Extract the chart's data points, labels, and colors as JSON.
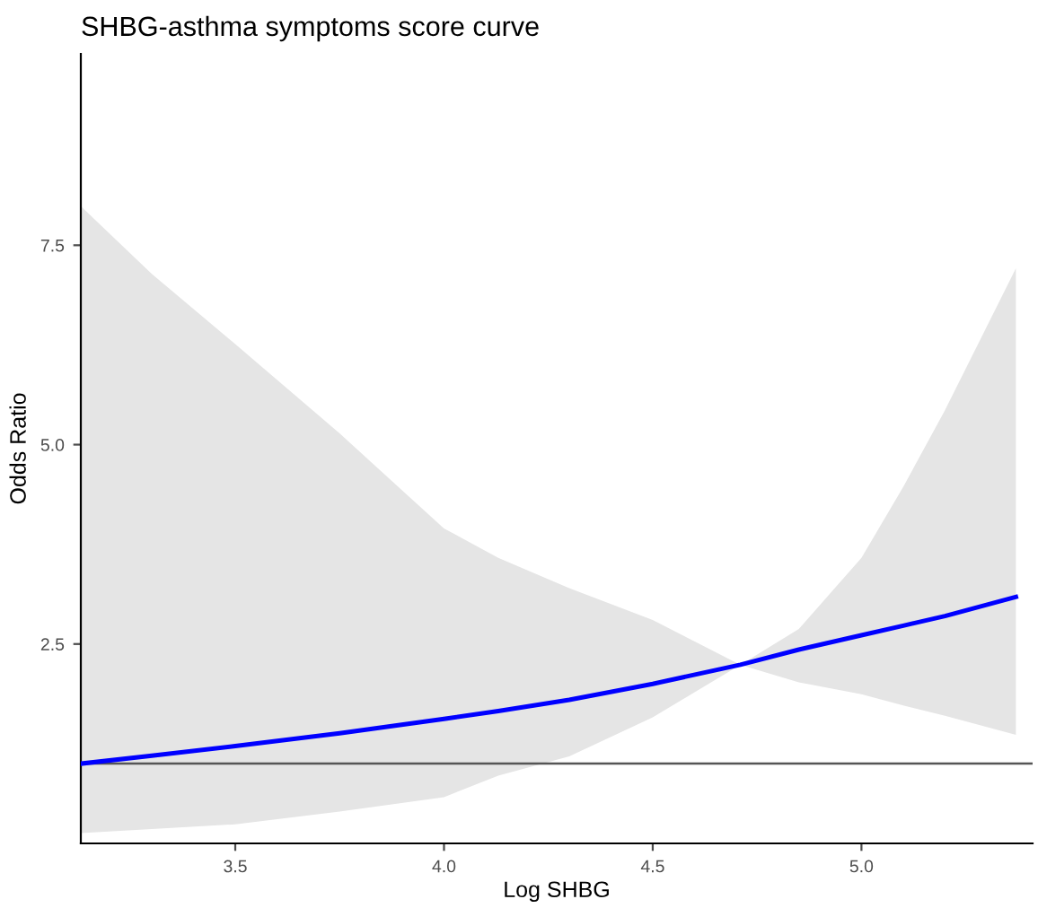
{
  "chart_data": {
    "type": "line",
    "title": "SHBG-asthma symptoms score curve",
    "xlabel": "Log SHBG",
    "ylabel": "Odds Ratio",
    "xlim": [
      3.13,
      5.41
    ],
    "ylim": [
      0,
      9.9
    ],
    "xticks": [
      3.5,
      {
        "value": 4,
        "label": "4.0"
      },
      4.5,
      {
        "value": 5,
        "label": "5.0"
      }
    ],
    "yticks": [
      2.5,
      {
        "value": 5,
        "label": "5.0"
      },
      7.5
    ],
    "grid": false,
    "legend": false,
    "series": [
      {
        "color": "#0000ff",
        "x": [
          3.13,
          3.3,
          3.5,
          3.75,
          4.0,
          4.13,
          4.3,
          4.5,
          4.71,
          4.85,
          5.0,
          5.1,
          5.2,
          5.37
        ],
        "values": [
          1.0,
          1.1,
          1.22,
          1.38,
          1.56,
          1.66,
          1.8,
          2.0,
          2.24,
          2.43,
          2.61,
          2.73,
          2.85,
          3.09
        ],
        "lower": [
          0.13,
          0.18,
          0.24,
          0.4,
          0.58,
          0.85,
          1.09,
          1.58,
          2.24,
          2.69,
          3.58,
          4.47,
          5.43,
          7.21
        ],
        "upper": [
          7.99,
          7.14,
          6.26,
          5.14,
          3.95,
          3.58,
          3.2,
          2.8,
          2.24,
          2.02,
          1.87,
          1.73,
          1.6,
          1.36
        ]
      }
    ],
    "ref_lines": [
      {
        "axis": "y",
        "value": 1.0,
        "color": "#555555"
      }
    ]
  }
}
